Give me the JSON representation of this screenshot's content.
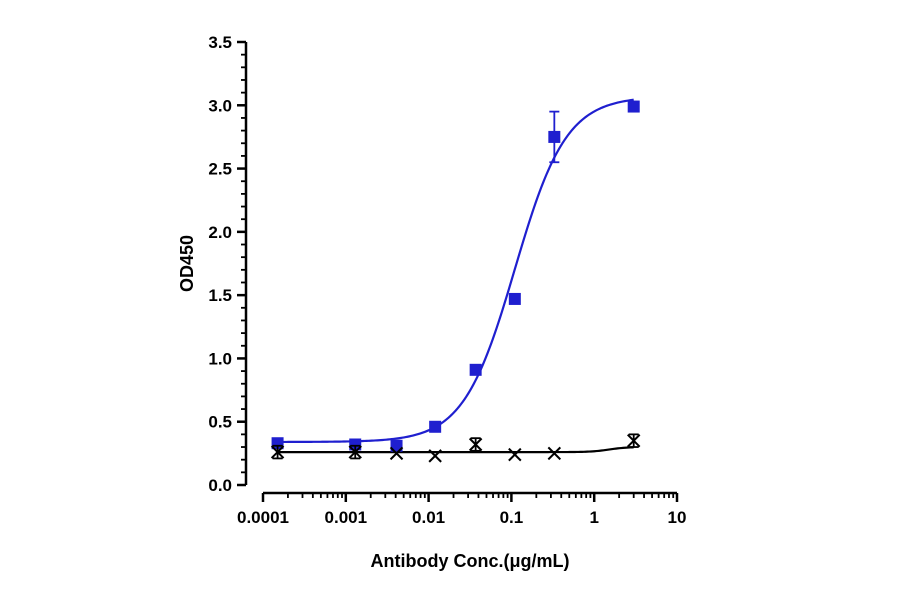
{
  "chart_data": {
    "type": "scatter",
    "title": "",
    "xlabel": "Antibody Conc.(μg/mL)",
    "ylabel": "OD450",
    "xscale": "log",
    "xlim": [
      0.0001,
      10
    ],
    "ylim": [
      0,
      3.5
    ],
    "x_ticks": [
      0.0001,
      0.001,
      0.01,
      0.1,
      1,
      10
    ],
    "x_tick_labels": [
      "0.0001",
      "0.001",
      "0.01",
      "0.1",
      "1",
      "10"
    ],
    "y_ticks": [
      0,
      0.5,
      1,
      1.5,
      2,
      2.5,
      3,
      3.5
    ],
    "y_tick_labels": [
      "0.0",
      "0.5",
      "1.0",
      "1.5",
      "2.0",
      "2.5",
      "3.0",
      "3.5"
    ],
    "grid": false,
    "legend": "none",
    "series": [
      {
        "marker": "square",
        "color": "#1f1fcf",
        "x": [
          0.00015,
          0.0013,
          0.0041,
          0.012,
          0.037,
          0.11,
          0.33,
          3.0
        ],
        "y": [
          0.33,
          0.32,
          0.31,
          0.46,
          0.91,
          1.47,
          2.75,
          2.99
        ],
        "error": [
          0,
          0,
          0,
          0,
          0,
          0,
          0.2,
          0
        ],
        "fit": {
          "model": "4PL",
          "bottom": 0.34,
          "top": 3.07,
          "ec50": 0.11,
          "hill": 1.4
        }
      },
      {
        "marker": "cross",
        "color": "#000000",
        "x": [
          0.00015,
          0.0013,
          0.0041,
          0.012,
          0.037,
          0.11,
          0.33,
          3.0
        ],
        "y": [
          0.26,
          0.26,
          0.25,
          0.23,
          0.32,
          0.24,
          0.25,
          0.35
        ],
        "error": [
          0.05,
          0.05,
          0,
          0,
          0.05,
          0,
          0,
          0.05
        ],
        "fit": {
          "model": "4PL",
          "bottom": 0.26,
          "top": 0.3,
          "ec50": 1.5,
          "hill": 4
        }
      }
    ]
  }
}
